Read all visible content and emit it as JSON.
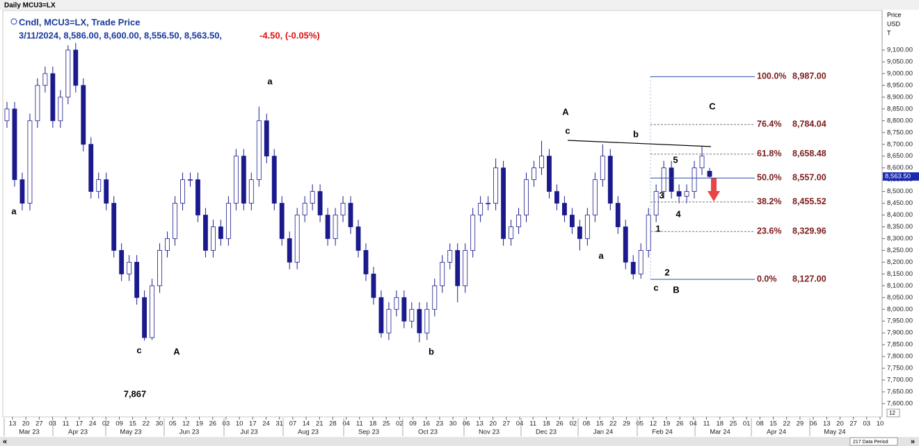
{
  "chart_data": {
    "type": "candlestick",
    "window_title": "Daily MCU3=LX",
    "legend_title": "Cndl, MCU3=LX, Trade Price",
    "legend_values": "3/11/2024, 8,586.00, 8,600.00, 8,556.50, 8,563.50,",
    "legend_change": "-4.50, (-0.05%)",
    "axis_title": [
      "Price",
      "USD",
      "T"
    ],
    "up_color": "#ffffff",
    "down_color": "#1a1a8c",
    "outline_color": "#1a1a8c",
    "open": [
      8800,
      8850,
      8550,
      8450,
      8800,
      8950,
      9000,
      8800,
      8900,
      9100,
      8950,
      8700,
      8500,
      8550,
      8450,
      8250,
      8150,
      8200,
      8050,
      7880,
      8100,
      8250,
      8300,
      8450,
      8550,
      8550,
      8400,
      8250,
      8350,
      8300,
      8450,
      8650,
      8450,
      8550,
      8800,
      8650,
      8450,
      8300,
      8200,
      8400,
      8450,
      8500,
      8400,
      8300,
      8400,
      8450,
      8350,
      8250,
      8150,
      8050,
      7900,
      8000,
      8050,
      7950,
      8000,
      7900,
      8000,
      8100,
      8200,
      8250,
      8100,
      8250,
      8400,
      8450,
      8450,
      8600,
      8300,
      8350,
      8400,
      8550,
      8600,
      8650,
      8500,
      8450,
      8400,
      8350,
      8300,
      8400,
      8550,
      8650,
      8450,
      8350,
      8200,
      8150,
      8250,
      8400,
      8500,
      8600,
      8500,
      8480,
      8500,
      8600,
      8586
    ],
    "high": [
      8880,
      8880,
      8580,
      8830,
      8980,
      9030,
      9030,
      8930,
      9120,
      9130,
      8980,
      8730,
      8580,
      8580,
      8480,
      8280,
      8230,
      8230,
      8080,
      8130,
      8280,
      8330,
      8480,
      8580,
      8580,
      8580,
      8430,
      8380,
      8380,
      8480,
      8680,
      8680,
      8580,
      8860,
      8830,
      8680,
      8480,
      8330,
      8430,
      8480,
      8530,
      8530,
      8430,
      8430,
      8480,
      8480,
      8380,
      8280,
      8180,
      8080,
      8030,
      8080,
      8080,
      8030,
      8030,
      8030,
      8130,
      8230,
      8280,
      8280,
      8280,
      8430,
      8480,
      8480,
      8640,
      8630,
      8380,
      8430,
      8580,
      8630,
      8715,
      8680,
      8530,
      8480,
      8430,
      8380,
      8430,
      8580,
      8700,
      8680,
      8480,
      8380,
      8230,
      8280,
      8430,
      8530,
      8630,
      8630,
      8530,
      8530,
      8630,
      8690,
      8600
    ],
    "low": [
      8770,
      8520,
      8420,
      8420,
      8770,
      8920,
      8770,
      8770,
      8870,
      8920,
      8670,
      8470,
      8470,
      8420,
      8220,
      8120,
      8120,
      8020,
      7867,
      7870,
      8070,
      8220,
      8270,
      8420,
      8520,
      8370,
      8220,
      8220,
      8270,
      8270,
      8420,
      8420,
      8420,
      8520,
      8620,
      8420,
      8270,
      8170,
      8170,
      8370,
      8420,
      8370,
      8270,
      8270,
      8370,
      8320,
      8220,
      8120,
      8020,
      7880,
      7870,
      7970,
      7920,
      7920,
      7860,
      7870,
      7970,
      8070,
      8170,
      8030,
      8070,
      8220,
      8370,
      8420,
      8420,
      8270,
      8270,
      8320,
      8370,
      8520,
      8570,
      8470,
      8420,
      8370,
      8320,
      8250,
      8270,
      8370,
      8520,
      8420,
      8320,
      8170,
      8127,
      8130,
      8220,
      8370,
      8470,
      8470,
      8450,
      8450,
      8470,
      8570,
      8556.5
    ],
    "close": [
      8850,
      8550,
      8450,
      8800,
      8950,
      9000,
      8800,
      8900,
      9100,
      8950,
      8700,
      8500,
      8550,
      8450,
      8250,
      8150,
      8200,
      8050,
      7880,
      8100,
      8250,
      8300,
      8450,
      8550,
      8550,
      8400,
      8250,
      8350,
      8300,
      8450,
      8650,
      8450,
      8550,
      8800,
      8650,
      8450,
      8300,
      8200,
      8400,
      8450,
      8500,
      8400,
      8300,
      8400,
      8450,
      8350,
      8250,
      8150,
      8050,
      7900,
      8000,
      8050,
      7950,
      8000,
      7900,
      8000,
      8100,
      8200,
      8250,
      8100,
      8250,
      8400,
      8450,
      8450,
      8600,
      8300,
      8350,
      8400,
      8550,
      8600,
      8650,
      8500,
      8450,
      8400,
      8350,
      8300,
      8400,
      8550,
      8650,
      8450,
      8350,
      8200,
      8150,
      8250,
      8400,
      8500,
      8600,
      8500,
      8480,
      8500,
      8600,
      8650,
      8563.5
    ],
    "last_price_label": "8,563.50",
    "ylim": [
      7544,
      9268
    ],
    "yticks": [
      {
        "value": 7600,
        "label": "7,600.00"
      },
      {
        "value": 7650,
        "label": "7,650.00"
      },
      {
        "value": 7700,
        "label": "7,700.00"
      },
      {
        "value": 7750,
        "label": "7,750.00"
      },
      {
        "value": 7800,
        "label": "7,800.00"
      },
      {
        "value": 7850,
        "label": "7,850.00"
      },
      {
        "value": 7900,
        "label": "7,900.00"
      },
      {
        "value": 7950,
        "label": "7,950.00"
      },
      {
        "value": 8000,
        "label": "8,000.00"
      },
      {
        "value": 8050,
        "label": "8,050.00"
      },
      {
        "value": 8100,
        "label": "8,100.00"
      },
      {
        "value": 8150,
        "label": "8,150.00"
      },
      {
        "value": 8200,
        "label": "8,200.00"
      },
      {
        "value": 8250,
        "label": "8,250.00"
      },
      {
        "value": 8300,
        "label": "8,300.00"
      },
      {
        "value": 8350,
        "label": "8,350.00"
      },
      {
        "value": 8400,
        "label": "8,400.00"
      },
      {
        "value": 8450,
        "label": "8,450.00"
      },
      {
        "value": 8500,
        "label": "8,500.00"
      },
      {
        "value": 8550,
        "label": "8,550.00"
      },
      {
        "value": 8600,
        "label": "8,600.00"
      },
      {
        "value": 8650,
        "label": "8,650.00"
      },
      {
        "value": 8700,
        "label": "8,700.00"
      },
      {
        "value": 8750,
        "label": "8,750.00"
      },
      {
        "value": 8800,
        "label": "8,800.00"
      },
      {
        "value": 8850,
        "label": "8,850.00"
      },
      {
        "value": 8900,
        "label": "8,900.00"
      },
      {
        "value": 8950,
        "label": "8,950.00"
      },
      {
        "value": 9000,
        "label": "9,000.00"
      },
      {
        "value": 9050,
        "label": "9,050.00"
      },
      {
        "value": 9100,
        "label": "9,100.00"
      }
    ],
    "x_tick_labels": [
      "13",
      "20",
      "27",
      "03",
      "11",
      "17",
      "24",
      "02",
      "09",
      "15",
      "22",
      "30",
      "05",
      "12",
      "19",
      "26",
      "03",
      "10",
      "17",
      "24",
      "31",
      "07",
      "14",
      "21",
      "28",
      "04",
      "11",
      "18",
      "25",
      "02",
      "09",
      "16",
      "23",
      "30",
      "06",
      "13",
      "20",
      "27",
      "04",
      "11",
      "18",
      "26",
      "02",
      "08",
      "15",
      "22",
      "29",
      "05",
      "12",
      "19",
      "26",
      "04",
      "11",
      "18",
      "25",
      "01",
      "08",
      "15",
      "22",
      "29",
      "06",
      "13",
      "20",
      "27",
      "03",
      "10"
    ],
    "month_labels": [
      "Mar 23",
      "Apr 23",
      "May 23",
      "Jun 23",
      "Jul 23",
      "Aug 23",
      "Sep 23",
      "Oct 23",
      "Nov 23",
      "Dec 23",
      "Jan 24",
      "Feb 24",
      "Mar 24",
      "Apr 24",
      "May 24"
    ],
    "fib_levels": [
      {
        "label": "100.0%",
        "value": 8987,
        "value_label": "8,987.00"
      },
      {
        "label": "76.4%",
        "value": 8784.04,
        "value_label": "8,784.04"
      },
      {
        "label": "61.8%",
        "value": 8658.48,
        "value_label": "8,658.48"
      },
      {
        "label": "50.0%",
        "value": 8557,
        "value_label": "8,557.00"
      },
      {
        "label": "38.2%",
        "value": 8455.52,
        "value_label": "8,455.52"
      },
      {
        "label": "23.6%",
        "value": 8329.96,
        "value_label": "8,329.96"
      },
      {
        "label": "0.0%",
        "value": 8127,
        "value_label": "8,127.00"
      }
    ],
    "annotations": [
      "a",
      "c",
      "A",
      "7,867",
      "a",
      "b",
      "A",
      "c",
      "b",
      "C",
      "a",
      "5",
      "3",
      "4",
      "1",
      "2",
      "c",
      "B"
    ],
    "status_bar": "217 Data Period",
    "scroll_label": "12"
  }
}
